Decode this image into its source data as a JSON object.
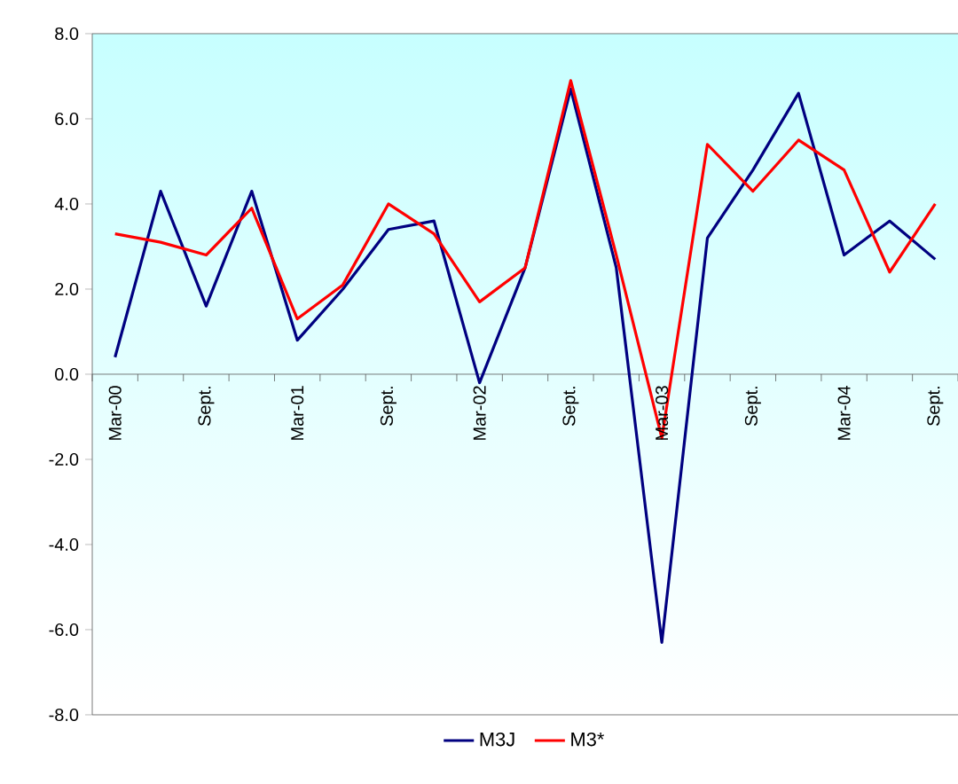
{
  "chart_data": {
    "type": "line",
    "categories": [
      "Mar-00",
      null,
      "Sept.",
      null,
      "Mar-01",
      null,
      "Sept.",
      null,
      "Mar-02",
      null,
      "Sept.",
      null,
      "Mar-03",
      null,
      "Sept.",
      null,
      "Mar-04",
      null,
      "Sept."
    ],
    "series": [
      {
        "name": "M3J",
        "color": "#000080",
        "values": [
          0.4,
          4.3,
          1.6,
          4.3,
          0.8,
          2.0,
          3.4,
          3.6,
          -0.2,
          2.5,
          6.7,
          2.5,
          -6.3,
          3.2,
          4.8,
          6.6,
          2.8,
          3.6,
          2.7
        ]
      },
      {
        "name": "M3*",
        "color": "#ff0000",
        "values": [
          3.3,
          3.1,
          2.8,
          3.9,
          1.3,
          2.1,
          4.0,
          3.3,
          1.7,
          2.5,
          6.9,
          2.8,
          -1.5,
          5.4,
          4.3,
          5.5,
          4.8,
          2.4,
          4.0
        ]
      }
    ],
    "ylim": [
      -8,
      8
    ],
    "yticks": [
      {
        "value": -8,
        "label": "-8.0"
      },
      {
        "value": -6,
        "label": "-6.0"
      },
      {
        "value": -4,
        "label": "-4.0"
      },
      {
        "value": -2,
        "label": "-2.0"
      },
      {
        "value": 0,
        "label": "0.0"
      },
      {
        "value": 2,
        "label": "2.0"
      },
      {
        "value": 4,
        "label": "4.0"
      },
      {
        "value": 6,
        "label": "6.0"
      },
      {
        "value": 8,
        "label": "8.0"
      }
    ],
    "legend": "bottom",
    "grid": false,
    "marker": "none",
    "line_style": "solid"
  }
}
